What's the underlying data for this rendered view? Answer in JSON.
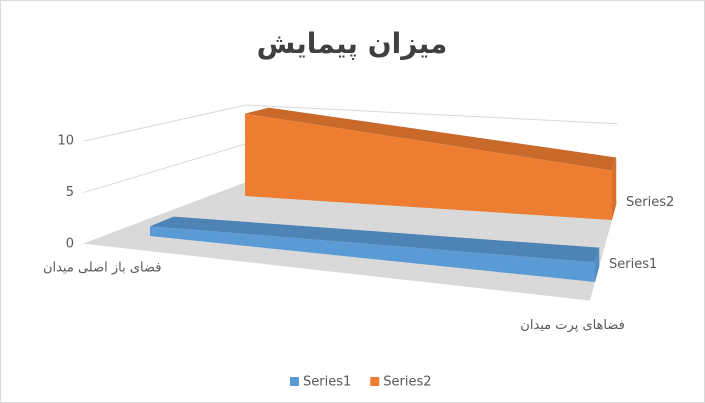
{
  "chart_data": {
    "type": "area3d",
    "title": "میزان پیمایش",
    "categories": [
      "فضای باز  اصلی میدان",
      "فضاهای پرت میدان"
    ],
    "series": [
      {
        "name": "Series1",
        "color": "#5b9bd5",
        "values": [
          1,
          2
        ]
      },
      {
        "name": "Series2",
        "color": "#ed7d31",
        "values": [
          10,
          6
        ]
      }
    ],
    "ylim": [
      0,
      12
    ],
    "yticks": [
      0,
      5,
      10
    ],
    "grid": true,
    "legend": "bottom"
  }
}
